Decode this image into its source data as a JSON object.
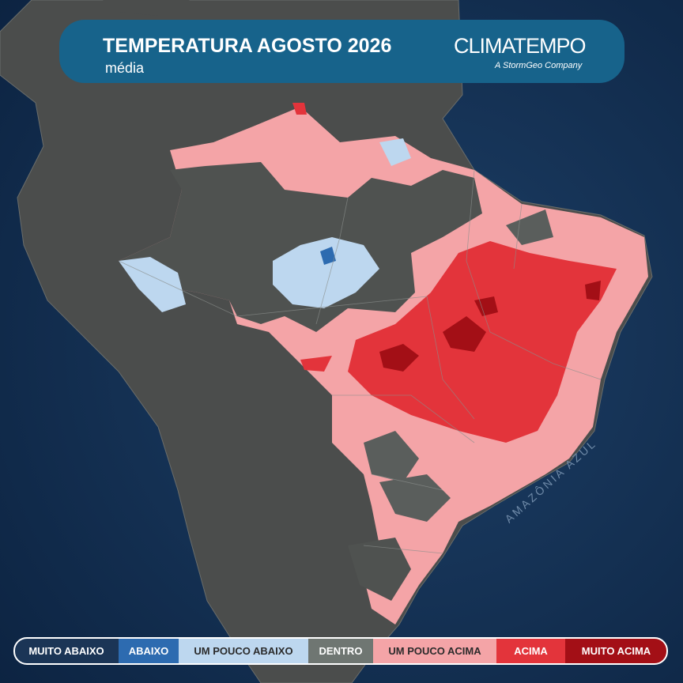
{
  "header": {
    "title": "TEMPERATURA AGOSTO 2026",
    "subtitle": "média",
    "logo": "CLIMATEMPO",
    "logo_tagline": "A StormGeo Company"
  },
  "map": {
    "label": "AMAZÔNIA AZUL"
  },
  "legend": [
    {
      "label": "MUITO ABAIXO",
      "color": "#1b3556"
    },
    {
      "label": "ABAIXO",
      "color": "#2d6bb0"
    },
    {
      "label": "UM POUCO ABAIXO",
      "color": "#bdd7ef"
    },
    {
      "label": "DENTRO",
      "color": "#6f7672"
    },
    {
      "label": "UM POUCO ACIMA",
      "color": "#f4a4a7"
    },
    {
      "label": "ACIMA",
      "color": "#e3343b"
    },
    {
      "label": "MUITO ACIMA",
      "color": "#a30f16"
    }
  ]
}
